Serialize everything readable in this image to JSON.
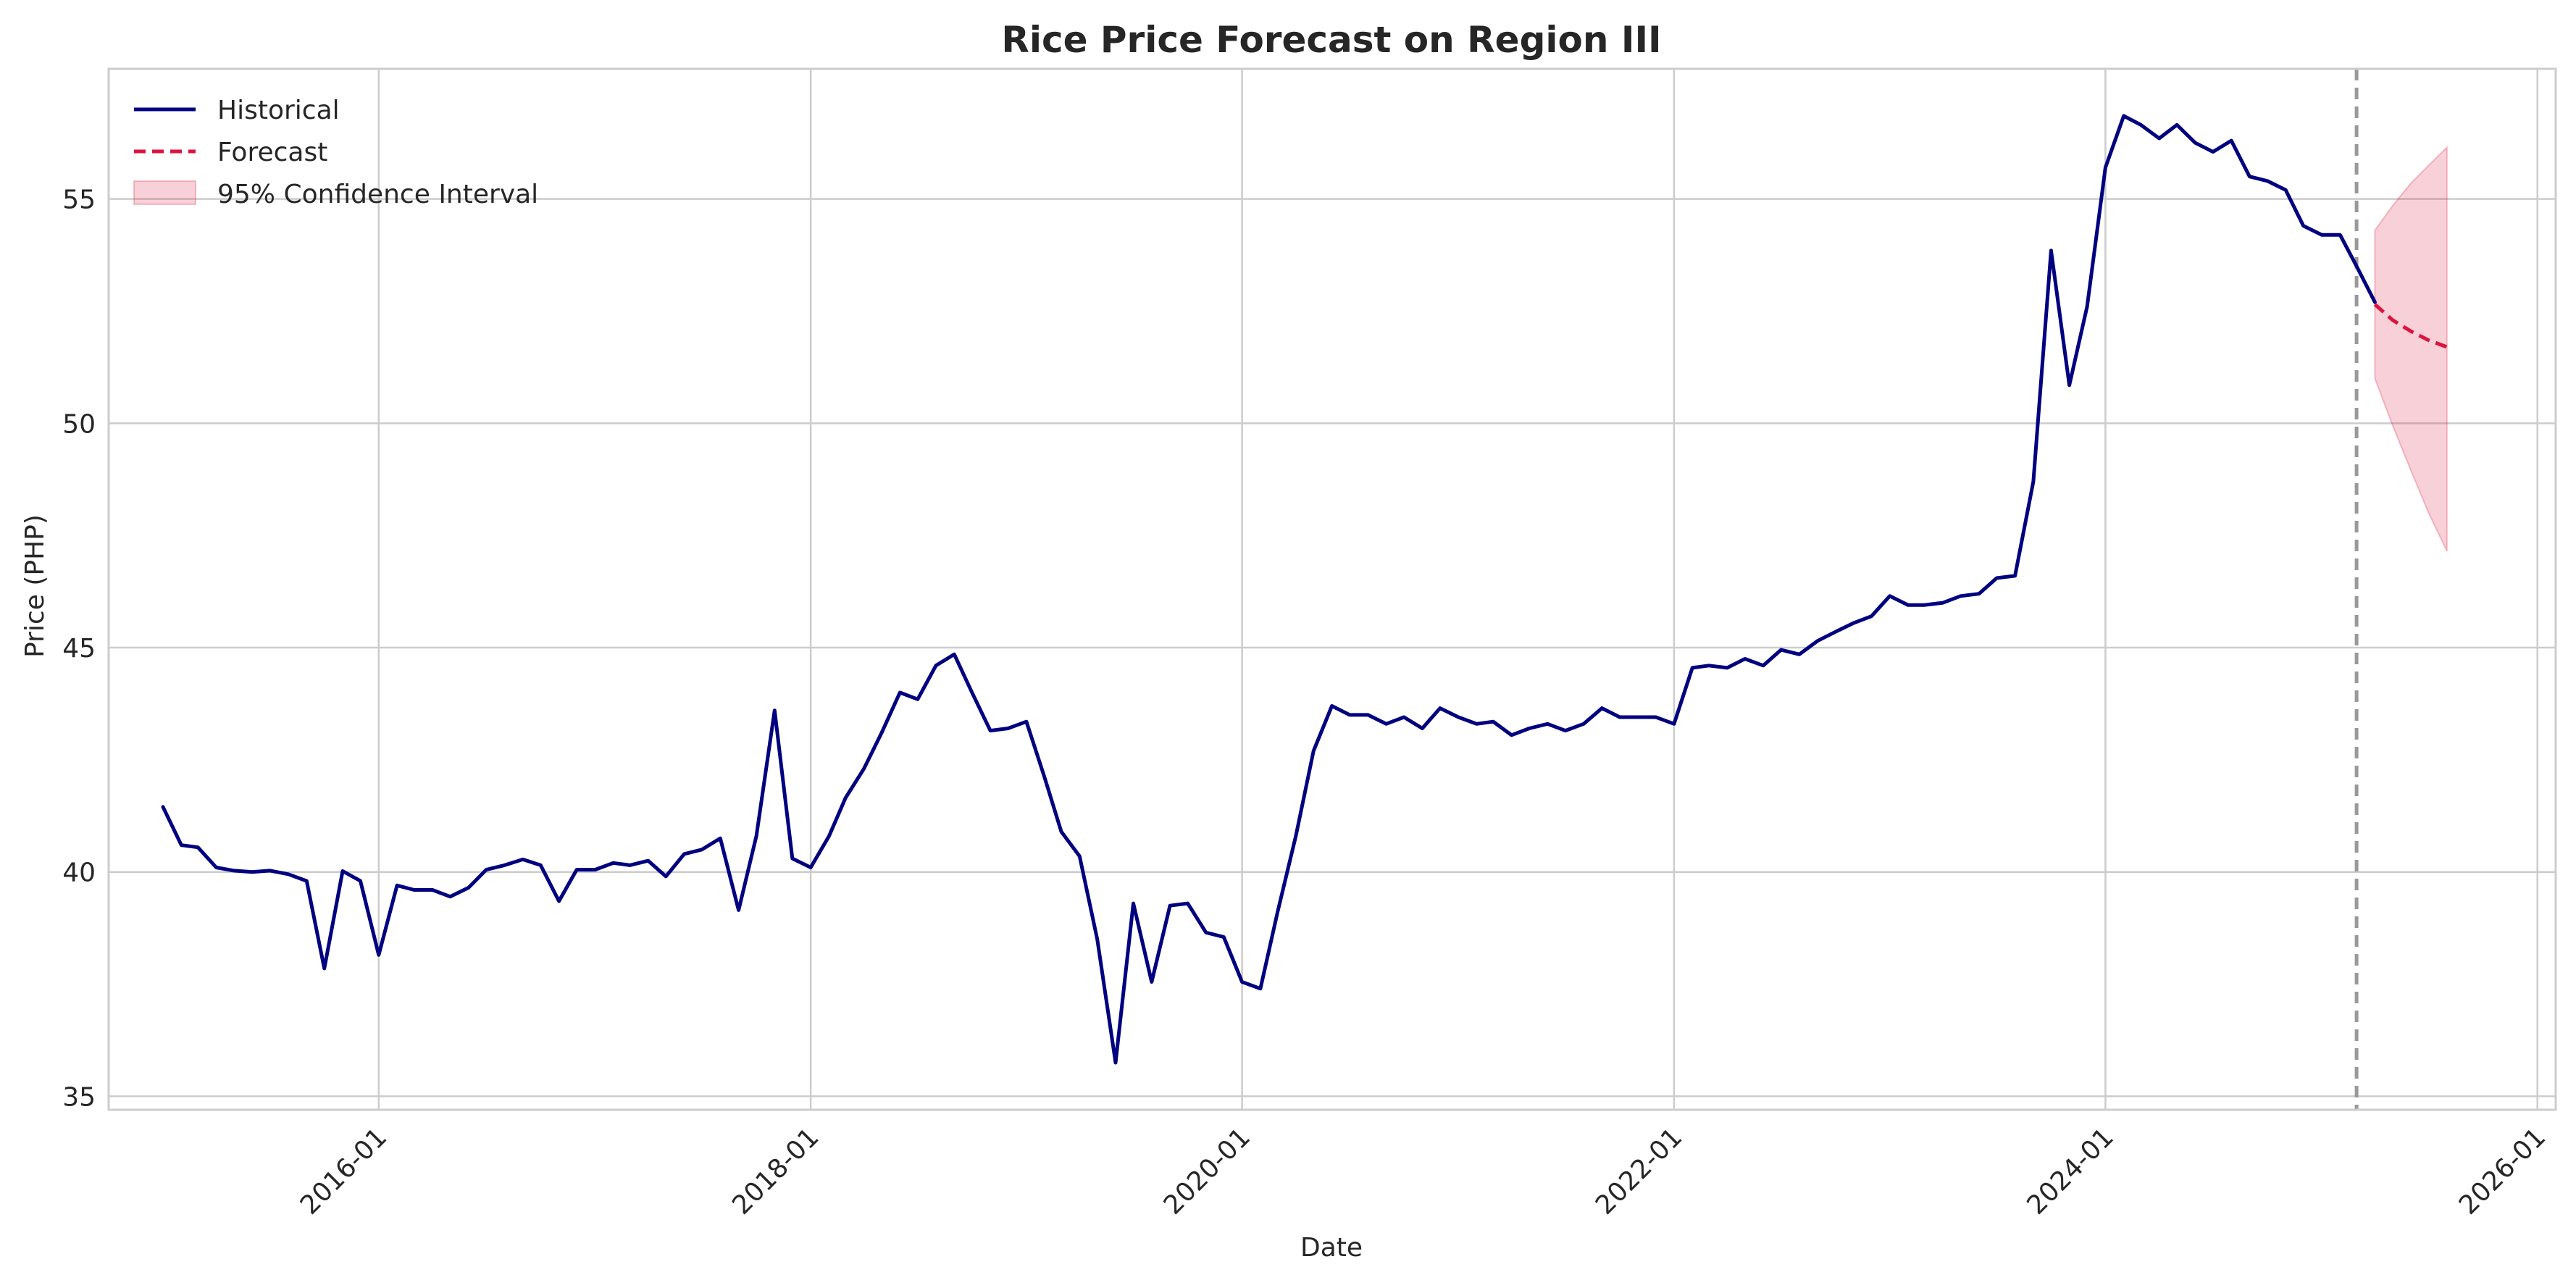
{
  "chart_data": {
    "type": "line",
    "title": "Rice Price Forecast on Region III",
    "xlabel": "Date",
    "ylabel": "Price (PHP)",
    "x_range": [
      "2014-10-01",
      "2026-02-01"
    ],
    "ylim": [
      34.7,
      57.9
    ],
    "grid": true,
    "legend_position": "top-left",
    "x_ticks": [
      "2016-01",
      "2018-01",
      "2020-01",
      "2022-01",
      "2024-01",
      "2026-01"
    ],
    "y_ticks": [
      35,
      40,
      45,
      50,
      55
    ],
    "forecast_start": "2025-03-01",
    "colors": {
      "historical": "#000080",
      "forecast": "#dc143c",
      "interval": "#dc143c",
      "divider": "#999999",
      "grid": "#cccccc"
    },
    "series": [
      {
        "name": "Historical",
        "style": "solid",
        "points": [
          [
            "2015-01-01",
            41.45
          ],
          [
            "2015-02-01",
            40.6
          ],
          [
            "2015-03-01",
            40.55
          ],
          [
            "2015-04-01",
            40.1
          ],
          [
            "2015-05-01",
            40.03
          ],
          [
            "2015-06-01",
            40.0
          ],
          [
            "2015-07-01",
            40.03
          ],
          [
            "2015-08-01",
            39.95
          ],
          [
            "2015-09-01",
            39.8
          ],
          [
            "2015-10-01",
            37.85
          ],
          [
            "2015-11-01",
            40.02
          ],
          [
            "2015-12-01",
            39.8
          ],
          [
            "2016-01-01",
            38.15
          ],
          [
            "2016-02-01",
            39.7
          ],
          [
            "2016-03-01",
            39.6
          ],
          [
            "2016-04-01",
            39.6
          ],
          [
            "2016-05-01",
            39.45
          ],
          [
            "2016-06-01",
            39.65
          ],
          [
            "2016-07-01",
            40.05
          ],
          [
            "2016-08-01",
            40.15
          ],
          [
            "2016-09-01",
            40.28
          ],
          [
            "2016-10-01",
            40.15
          ],
          [
            "2016-11-01",
            39.35
          ],
          [
            "2016-12-01",
            40.05
          ],
          [
            "2017-01-01",
            40.05
          ],
          [
            "2017-02-01",
            40.2
          ],
          [
            "2017-03-01",
            40.15
          ],
          [
            "2017-04-01",
            40.25
          ],
          [
            "2017-05-01",
            39.9
          ],
          [
            "2017-06-01",
            40.4
          ],
          [
            "2017-07-01",
            40.5
          ],
          [
            "2017-08-01",
            40.75
          ],
          [
            "2017-09-01",
            39.15
          ],
          [
            "2017-10-01",
            40.8
          ],
          [
            "2017-11-01",
            43.6
          ],
          [
            "2017-12-01",
            40.3
          ],
          [
            "2018-01-01",
            40.1
          ],
          [
            "2018-02-01",
            40.8
          ],
          [
            "2018-03-01",
            41.65
          ],
          [
            "2018-04-01",
            42.3
          ],
          [
            "2018-05-01",
            43.1
          ],
          [
            "2018-06-01",
            44.0
          ],
          [
            "2018-07-01",
            43.85
          ],
          [
            "2018-08-01",
            44.6
          ],
          [
            "2018-09-01",
            44.85
          ],
          [
            "2018-10-01",
            44.0
          ],
          [
            "2018-11-01",
            43.15
          ],
          [
            "2018-12-01",
            43.2
          ],
          [
            "2019-01-01",
            43.35
          ],
          [
            "2019-02-01",
            42.1
          ],
          [
            "2019-03-01",
            40.9
          ],
          [
            "2019-04-01",
            40.35
          ],
          [
            "2019-05-01",
            38.5
          ],
          [
            "2019-06-01",
            35.75
          ],
          [
            "2019-07-01",
            39.3
          ],
          [
            "2019-08-01",
            37.55
          ],
          [
            "2019-09-01",
            39.25
          ],
          [
            "2019-10-01",
            39.3
          ],
          [
            "2019-11-01",
            38.65
          ],
          [
            "2019-12-01",
            38.55
          ],
          [
            "2020-01-01",
            37.55
          ],
          [
            "2020-02-01",
            37.4
          ],
          [
            "2020-03-01",
            39.1
          ],
          [
            "2020-04-01",
            40.8
          ],
          [
            "2020-05-01",
            42.7
          ],
          [
            "2020-06-01",
            43.7
          ],
          [
            "2020-07-01",
            43.5
          ],
          [
            "2020-08-01",
            43.5
          ],
          [
            "2020-09-01",
            43.3
          ],
          [
            "2020-10-01",
            43.45
          ],
          [
            "2020-11-01",
            43.2
          ],
          [
            "2020-12-01",
            43.65
          ],
          [
            "2021-01-01",
            43.45
          ],
          [
            "2021-02-01",
            43.3
          ],
          [
            "2021-03-01",
            43.35
          ],
          [
            "2021-04-01",
            43.05
          ],
          [
            "2021-05-01",
            43.2
          ],
          [
            "2021-06-01",
            43.3
          ],
          [
            "2021-07-01",
            43.15
          ],
          [
            "2021-08-01",
            43.3
          ],
          [
            "2021-09-01",
            43.65
          ],
          [
            "2021-10-01",
            43.45
          ],
          [
            "2021-11-01",
            43.45
          ],
          [
            "2021-12-01",
            43.45
          ],
          [
            "2022-01-01",
            43.3
          ],
          [
            "2022-02-01",
            44.55
          ],
          [
            "2022-03-01",
            44.6
          ],
          [
            "2022-04-01",
            44.55
          ],
          [
            "2022-05-01",
            44.75
          ],
          [
            "2022-06-01",
            44.6
          ],
          [
            "2022-07-01",
            44.95
          ],
          [
            "2022-08-01",
            44.85
          ],
          [
            "2022-09-01",
            45.15
          ],
          [
            "2022-10-01",
            45.35
          ],
          [
            "2022-11-01",
            45.55
          ],
          [
            "2022-12-01",
            45.7
          ],
          [
            "2023-01-01",
            46.15
          ],
          [
            "2023-02-01",
            45.95
          ],
          [
            "2023-03-01",
            45.95
          ],
          [
            "2023-04-01",
            46.0
          ],
          [
            "2023-05-01",
            46.15
          ],
          [
            "2023-06-01",
            46.2
          ],
          [
            "2023-07-01",
            46.55
          ],
          [
            "2023-08-01",
            46.6
          ],
          [
            "2023-09-01",
            48.7
          ],
          [
            "2023-10-01",
            53.85
          ],
          [
            "2023-11-01",
            50.85
          ],
          [
            "2023-12-01",
            52.6
          ],
          [
            "2024-01-01",
            55.7
          ],
          [
            "2024-02-01",
            56.85
          ],
          [
            "2024-03-01",
            56.65
          ],
          [
            "2024-04-01",
            56.35
          ],
          [
            "2024-05-01",
            56.65
          ],
          [
            "2024-06-01",
            56.25
          ],
          [
            "2024-07-01",
            56.05
          ],
          [
            "2024-08-01",
            56.3
          ],
          [
            "2024-09-01",
            55.5
          ],
          [
            "2024-10-01",
            55.4
          ],
          [
            "2024-11-01",
            55.2
          ],
          [
            "2024-12-01",
            54.4
          ],
          [
            "2025-01-01",
            54.2
          ],
          [
            "2025-02-01",
            54.2
          ],
          [
            "2025-03-01",
            53.5
          ],
          [
            "2025-04-01",
            52.7
          ]
        ]
      },
      {
        "name": "Forecast",
        "style": "dashed",
        "points": [
          [
            "2025-04-01",
            52.65
          ],
          [
            "2025-05-01",
            52.3
          ],
          [
            "2025-06-01",
            52.05
          ],
          [
            "2025-07-01",
            51.85
          ],
          [
            "2025-08-01",
            51.7
          ]
        ]
      }
    ],
    "confidence_interval": {
      "name": "95% Confidence Interval",
      "points": [
        [
          "2025-04-01",
          51.0,
          54.3
        ],
        [
          "2025-05-01",
          49.95,
          54.85
        ],
        [
          "2025-06-01",
          48.95,
          55.35
        ],
        [
          "2025-07-01",
          48.0,
          55.75
        ],
        [
          "2025-08-01",
          47.15,
          56.15
        ]
      ]
    }
  }
}
